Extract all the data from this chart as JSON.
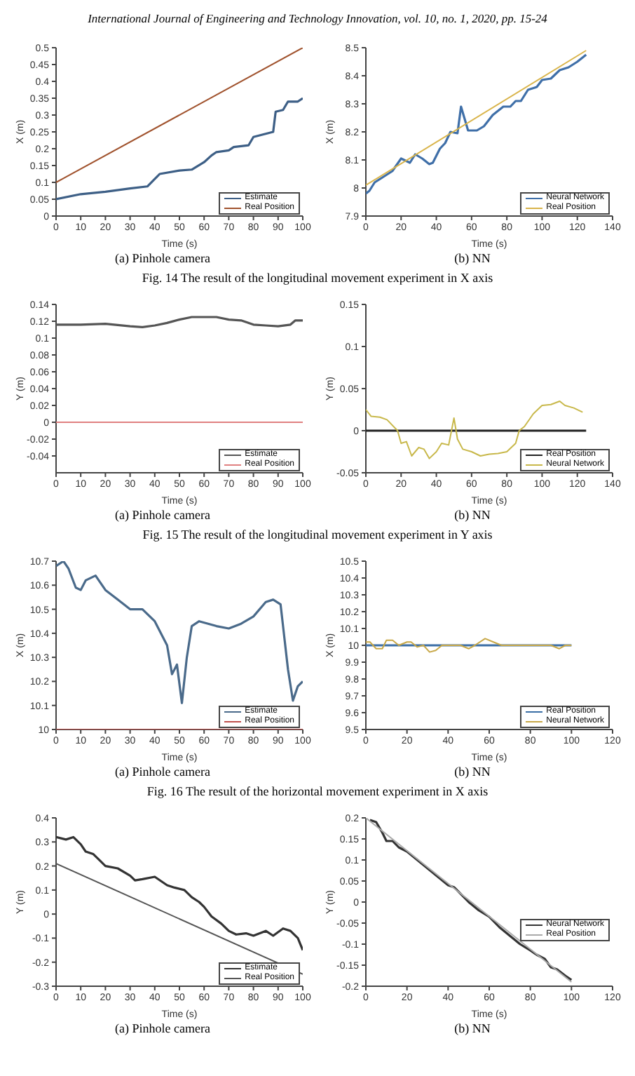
{
  "chart_data": [
    {
      "type": "line",
      "title": "(a) Pinhole camera",
      "xlabel": "Time (s)",
      "ylabel": "X (m)",
      "annotations": [
        "International Journal of Engineering and Technology Innovation, vol. 10, no. 1, 2020, pp. 15-24"
      ],
      "legend": "bottom right",
      "xlim": [
        0,
        100
      ],
      "xticks": [
        0,
        10,
        20,
        30,
        40,
        50,
        60,
        70,
        80,
        90,
        100
      ],
      "ylim": [
        0,
        0.5
      ],
      "yticks": [
        0,
        0.05,
        0.1,
        0.15,
        0.2,
        0.25,
        0.3,
        0.35,
        0.4,
        0.45,
        0.5
      ],
      "series": [
        {
          "name": "Estimate",
          "color": "#3d5f86",
          "x": [
            0,
            10,
            20,
            30,
            37,
            40,
            42,
            50,
            55,
            60,
            63,
            65,
            70,
            72,
            78,
            80,
            88,
            89,
            92,
            94,
            98,
            100
          ],
          "values": [
            0.05,
            0.065,
            0.072,
            0.082,
            0.088,
            0.11,
            0.125,
            0.135,
            0.138,
            0.16,
            0.18,
            0.19,
            0.195,
            0.205,
            0.21,
            0.235,
            0.25,
            0.31,
            0.315,
            0.34,
            0.34,
            0.35
          ]
        },
        {
          "name": "Real Position",
          "color": "#a0522d",
          "x": [
            0,
            100
          ],
          "values": [
            0.1,
            0.5
          ]
        }
      ]
    },
    {
      "type": "line",
      "title": "(b) NN",
      "xlabel": "Time (s)",
      "ylabel": "X (m)",
      "annotations": [
        "Fig. 14 The result of the longitudinal movement experiment in X axis"
      ],
      "legend": "bottom right",
      "xlim": [
        0,
        140
      ],
      "xticks": [
        0,
        20,
        40,
        60,
        80,
        100,
        120,
        140
      ],
      "ylim": [
        7.9,
        8.5
      ],
      "yticks": [
        7.9,
        8,
        8.1,
        8.2,
        8.3,
        8.4,
        8.5
      ],
      "series": [
        {
          "name": "Neural Network",
          "color": "#3f6fa8",
          "x": [
            0,
            2,
            5,
            10,
            15,
            20,
            25,
            28,
            32,
            36,
            38,
            42,
            45,
            48,
            52,
            54,
            58,
            63,
            67,
            72,
            78,
            82,
            85,
            88,
            92,
            97,
            100,
            105,
            110,
            115,
            120,
            125
          ],
          "values": [
            7.98,
            7.99,
            8.02,
            8.04,
            8.06,
            8.105,
            8.09,
            8.12,
            8.105,
            8.085,
            8.09,
            8.14,
            8.16,
            8.2,
            8.195,
            8.29,
            8.205,
            8.205,
            8.22,
            8.26,
            8.29,
            8.29,
            8.31,
            8.31,
            8.35,
            8.36,
            8.385,
            8.39,
            8.42,
            8.43,
            8.45,
            8.475
          ]
        },
        {
          "name": "Real Position",
          "color": "#d9b44a",
          "x": [
            0,
            125
          ],
          "values": [
            8.01,
            8.49
          ]
        }
      ]
    },
    {
      "type": "line",
      "title": "(a) Pinhole camera",
      "xlabel": "Time (s)",
      "ylabel": "Y (m)",
      "legend": "bottom right",
      "xlim": [
        0,
        100
      ],
      "xticks": [
        0,
        10,
        20,
        30,
        40,
        50,
        60,
        70,
        80,
        90,
        100
      ],
      "ylim": [
        -0.06,
        0.14
      ],
      "yticks": [
        -0.04,
        -0.02,
        0,
        0.02,
        0.04,
        0.06,
        0.08,
        0.1,
        0.12,
        0.14
      ],
      "series": [
        {
          "name": "Estimate",
          "color": "#555555",
          "x": [
            0,
            10,
            20,
            30,
            35,
            40,
            45,
            50,
            55,
            60,
            65,
            70,
            75,
            80,
            85,
            90,
            95,
            97,
            100
          ],
          "values": [
            0.116,
            0.116,
            0.117,
            0.114,
            0.113,
            0.115,
            0.118,
            0.122,
            0.125,
            0.125,
            0.125,
            0.122,
            0.121,
            0.116,
            0.115,
            0.114,
            0.116,
            0.121,
            0.121
          ]
        },
        {
          "name": "Real Position",
          "color": "#e08080",
          "x": [
            0,
            100
          ],
          "values": [
            0,
            0
          ]
        }
      ]
    },
    {
      "type": "line",
      "title": "(b) NN",
      "xlabel": "Time (s)",
      "ylabel": "Y (m)",
      "annotations": [
        "Fig. 15 The result of the longitudinal movement experiment in Y axis"
      ],
      "legend": "bottom right",
      "xlim": [
        0,
        140
      ],
      "xticks": [
        0,
        20,
        40,
        60,
        80,
        100,
        120,
        140
      ],
      "ylim": [
        -0.05,
        0.15
      ],
      "yticks": [
        -0.05,
        0,
        0.05,
        0.1,
        0.15
      ],
      "series": [
        {
          "name": "Real Position",
          "color": "#222222",
          "x": [
            0,
            125
          ],
          "values": [
            0,
            0
          ]
        },
        {
          "name": "Neural Network",
          "color": "#c8b84a",
          "x": [
            0,
            3,
            8,
            12,
            18,
            20,
            23,
            26,
            30,
            33,
            36,
            40,
            43,
            47,
            50,
            52,
            55,
            60,
            65,
            70,
            75,
            80,
            85,
            87,
            90,
            95,
            100,
            105,
            110,
            113,
            118,
            123
          ],
          "values": [
            0.025,
            0.017,
            0.016,
            0.013,
            0,
            -0.015,
            -0.013,
            -0.03,
            -0.02,
            -0.022,
            -0.033,
            -0.025,
            -0.015,
            -0.017,
            0.015,
            -0.01,
            -0.022,
            -0.025,
            -0.03,
            -0.028,
            -0.027,
            -0.025,
            -0.015,
            0,
            0.005,
            0.02,
            0.03,
            0.031,
            0.035,
            0.03,
            0.027,
            0.022
          ]
        }
      ]
    },
    {
      "type": "line",
      "title": "(a) Pinhole camera",
      "xlabel": "Time (s)",
      "ylabel": "X (m)",
      "legend": "bottom right",
      "xlim": [
        0,
        100
      ],
      "xticks": [
        0,
        10,
        20,
        30,
        40,
        50,
        60,
        70,
        80,
        90,
        100
      ],
      "ylim": [
        10,
        10.7
      ],
      "yticks": [
        10,
        10.1,
        10.2,
        10.3,
        10.4,
        10.5,
        10.6,
        10.7
      ],
      "series": [
        {
          "name": "Estimate",
          "color": "#4a6a8a",
          "x": [
            0,
            3,
            5,
            8,
            10,
            12,
            16,
            20,
            25,
            30,
            35,
            40,
            45,
            47,
            49,
            51,
            53,
            55,
            58,
            65,
            70,
            75,
            80,
            85,
            88,
            91,
            94,
            96,
            98,
            100
          ],
          "values": [
            10.68,
            10.7,
            10.67,
            10.59,
            10.58,
            10.62,
            10.64,
            10.58,
            10.54,
            10.5,
            10.5,
            10.45,
            10.35,
            10.23,
            10.27,
            10.11,
            10.3,
            10.43,
            10.45,
            10.43,
            10.42,
            10.44,
            10.47,
            10.53,
            10.54,
            10.52,
            10.25,
            10.12,
            10.18,
            10.2
          ]
        },
        {
          "name": "Real Position",
          "color": "#c0504d",
          "x": [
            0,
            100
          ],
          "values": [
            10,
            10
          ]
        }
      ]
    },
    {
      "type": "line",
      "title": "(b) NN",
      "xlabel": "Time (s)",
      "ylabel": "X (m)",
      "annotations": [
        "Fig. 16 The result of the horizontal movement experiment in X axis"
      ],
      "legend": "bottom right",
      "xlim": [
        0,
        120
      ],
      "xticks": [
        0,
        20,
        40,
        60,
        80,
        100,
        120
      ],
      "ylim": [
        9.5,
        10.5
      ],
      "yticks": [
        9.5,
        9.6,
        9.7,
        9.8,
        9.9,
        10,
        10.1,
        10.2,
        10.3,
        10.4,
        10.5
      ],
      "series": [
        {
          "name": "Real Position",
          "color": "#3a6ea5",
          "x": [
            0,
            100
          ],
          "values": [
            10,
            10
          ]
        },
        {
          "name": "Neural Network",
          "color": "#c8a848",
          "x": [
            0,
            2,
            5,
            8,
            10,
            13,
            16,
            20,
            22,
            25,
            28,
            31,
            34,
            37,
            42,
            46,
            50,
            53,
            58,
            62,
            66,
            72,
            80,
            90,
            94,
            97,
            100
          ],
          "values": [
            10.02,
            10.02,
            9.98,
            9.98,
            10.03,
            10.03,
            10,
            10.02,
            10.02,
            9.99,
            10,
            9.96,
            9.97,
            10,
            10,
            10,
            9.98,
            10,
            10.04,
            10.02,
            10,
            10,
            10,
            10,
            9.98,
            10,
            10
          ]
        }
      ]
    },
    {
      "type": "line",
      "title": "(a) Pinhole camera",
      "xlabel": "Time (s)",
      "ylabel": "Y (m)",
      "legend": "bottom right",
      "xlim": [
        0,
        100
      ],
      "xticks": [
        0,
        10,
        20,
        30,
        40,
        50,
        60,
        70,
        80,
        90,
        100
      ],
      "ylim": [
        -0.3,
        0.4
      ],
      "yticks": [
        -0.3,
        -0.2,
        -0.1,
        0,
        0.1,
        0.2,
        0.3,
        0.4
      ],
      "series": [
        {
          "name": "Estimate",
          "color": "#333333",
          "x": [
            0,
            4,
            7,
            10,
            12,
            15,
            18,
            20,
            25,
            30,
            32,
            35,
            40,
            45,
            48,
            52,
            55,
            58,
            60,
            63,
            67,
            70,
            73,
            77,
            80,
            85,
            88,
            92,
            95,
            98,
            100
          ],
          "values": [
            0.32,
            0.31,
            0.32,
            0.29,
            0.26,
            0.25,
            0.22,
            0.2,
            0.19,
            0.16,
            0.14,
            0.145,
            0.155,
            0.12,
            0.11,
            0.1,
            0.07,
            0.05,
            0.03,
            -0.01,
            -0.04,
            -0.07,
            -0.085,
            -0.08,
            -0.09,
            -0.07,
            -0.09,
            -0.06,
            -0.07,
            -0.1,
            -0.15
          ]
        },
        {
          "name": "Real Position",
          "color": "#555555",
          "x": [
            0,
            100
          ],
          "values": [
            0.21,
            -0.25
          ]
        }
      ]
    },
    {
      "type": "line",
      "title": "(b) NN",
      "xlabel": "Time (s)",
      "ylabel": "Y (m)",
      "legend": "right",
      "xlim": [
        0,
        120
      ],
      "xticks": [
        0,
        20,
        40,
        60,
        80,
        100,
        120
      ],
      "ylim": [
        -0.2,
        0.2
      ],
      "yticks": [
        -0.2,
        -0.15,
        -0.1,
        -0.05,
        0,
        0.05,
        0.1,
        0.15,
        0.2
      ],
      "series": [
        {
          "name": "Neural Network",
          "color": "#333333",
          "x": [
            2,
            5,
            8,
            10,
            13,
            16,
            20,
            25,
            30,
            35,
            40,
            43,
            50,
            55,
            60,
            65,
            70,
            75,
            80,
            83,
            87,
            90,
            93,
            97,
            100
          ],
          "values": [
            0.195,
            0.19,
            0.165,
            0.145,
            0.145,
            0.13,
            0.12,
            0.1,
            0.08,
            0.06,
            0.04,
            0.035,
            0,
            -0.02,
            -0.035,
            -0.06,
            -0.08,
            -0.1,
            -0.115,
            -0.125,
            -0.135,
            -0.155,
            -0.16,
            -0.175,
            -0.185
          ]
        },
        {
          "name": "Real Position",
          "color": "#aaaaaa",
          "x": [
            0,
            100
          ],
          "values": [
            0.2,
            -0.19
          ]
        }
      ]
    }
  ]
}
